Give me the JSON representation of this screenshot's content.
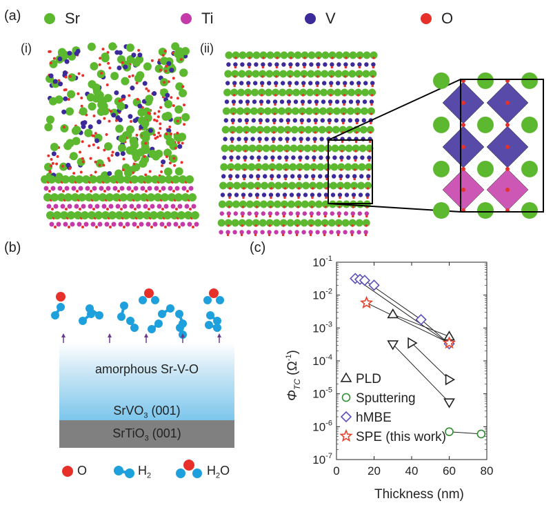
{
  "panel_labels": {
    "a": "(a)",
    "b": "(b)",
    "c": "(c)",
    "i": "(i)",
    "ii": "(ii)"
  },
  "atom_legend": [
    {
      "label": "Sr",
      "color": "#5cb82e"
    },
    {
      "label": "Ti",
      "color": "#c43aa8"
    },
    {
      "label": "V",
      "color": "#3a2a9a"
    },
    {
      "label": "O",
      "color": "#e8302a"
    }
  ],
  "schematic": {
    "top_layer": "amorphous Sr-V-O",
    "middle_layer_pre": "SrVO",
    "middle_layer_sub": "3",
    "middle_layer_post": " (001)",
    "bottom_layer_pre": "SrTiO",
    "bottom_layer_sub": "3",
    "bottom_layer_post": " (001)",
    "legend_o": "O",
    "legend_h2_pre": "H",
    "legend_h2_sub": "2",
    "legend_h2o_pre": "H",
    "legend_h2o_sub": "2",
    "legend_h2o_post": "O",
    "colors": {
      "o": "#e8302a",
      "h": "#1ea0dc",
      "arrow": "#6b3a8a"
    }
  },
  "chart_data": {
    "type": "scatter",
    "xlabel": "Thickness (nm)",
    "ylabel": "ΦTC (Ω-1)",
    "xlim": [
      0,
      80
    ],
    "ylim_log10": [
      -7,
      -1
    ],
    "log_y": true,
    "xticks": [
      0,
      20,
      40,
      60,
      80
    ],
    "yticks": [
      -7,
      -6,
      -5,
      -4,
      -3,
      -2,
      -1
    ],
    "series": [
      {
        "name": "PLD",
        "marker": "triangle-up",
        "color": "#222222",
        "points": [
          [
            30,
            0.0026
          ],
          [
            60,
            0.00055
          ]
        ],
        "connect": [
          [
            0,
            1
          ]
        ]
      },
      {
        "name": "",
        "marker": "triangle-right",
        "color": "#222222",
        "points": [
          [
            40,
            0.00035
          ],
          [
            60,
            2.7e-05
          ]
        ],
        "connect": [
          [
            0,
            1
          ]
        ]
      },
      {
        "name": "",
        "marker": "triangle-down",
        "color": "#222222",
        "points": [
          [
            30,
            0.00032
          ],
          [
            60,
            5.5e-06
          ]
        ],
        "connect": [
          [
            0,
            1
          ]
        ]
      },
      {
        "name": "Sputtering",
        "marker": "circle",
        "color": "#2e8b2e",
        "points": [
          [
            60,
            7e-07
          ],
          [
            77,
            6e-07
          ]
        ],
        "connect": [
          [
            0,
            1
          ]
        ]
      },
      {
        "name": "hMBE",
        "marker": "diamond",
        "color": "#5a4fb8",
        "points": [
          [
            10,
            0.032
          ],
          [
            12.5,
            0.03
          ],
          [
            15,
            0.028
          ],
          [
            20,
            0.02
          ],
          [
            45,
            0.0018
          ],
          [
            60,
            0.00033
          ]
        ],
        "connect": [
          [
            0,
            5
          ],
          [
            2,
            4
          ],
          [
            4,
            5
          ]
        ]
      },
      {
        "name": "SPE (this work)",
        "marker": "star",
        "color": "#e8402a",
        "points": [
          [
            16,
            0.0058
          ],
          [
            60,
            0.00035
          ]
        ],
        "connect": [
          [
            0,
            1
          ]
        ]
      }
    ],
    "legend_placement": "bottom-left"
  }
}
